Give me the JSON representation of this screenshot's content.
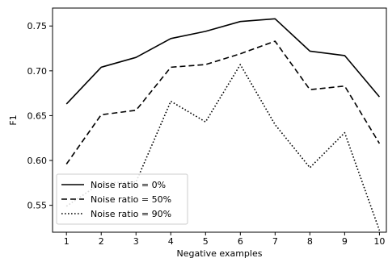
{
  "chart_data": {
    "type": "line",
    "title": "",
    "xlabel": "Negative examples",
    "ylabel": "F1",
    "x": [
      1,
      2,
      3,
      4,
      5,
      6,
      7,
      8,
      9,
      10
    ],
    "xlim": [
      0.6,
      10.2
    ],
    "ylim": [
      0.52,
      0.77
    ],
    "xticks": [
      1,
      2,
      3,
      4,
      5,
      6,
      7,
      8,
      9,
      10
    ],
    "yticks": [
      0.55,
      0.6,
      0.65,
      0.7,
      0.75
    ],
    "ytick_labels": [
      "0.55",
      "0.60",
      "0.65",
      "0.70",
      "0.75"
    ],
    "grid": false,
    "legend_position": "lower-left",
    "series": [
      {
        "name": "Noise ratio = 0%",
        "style": "solid",
        "values": [
          0.663,
          0.704,
          0.715,
          0.736,
          0.744,
          0.755,
          0.758,
          0.722,
          0.717,
          0.671
        ]
      },
      {
        "name": "Noise ratio = 50%",
        "style": "dashed",
        "values": [
          0.596,
          0.651,
          0.656,
          0.704,
          0.707,
          0.719,
          0.733,
          0.679,
          0.683,
          0.619
        ]
      },
      {
        "name": "Noise ratio = 90%",
        "style": "dotted",
        "values": [
          0.549,
          0.575,
          0.576,
          0.666,
          0.643,
          0.707,
          0.64,
          0.592,
          0.631,
          0.522
        ]
      }
    ]
  }
}
